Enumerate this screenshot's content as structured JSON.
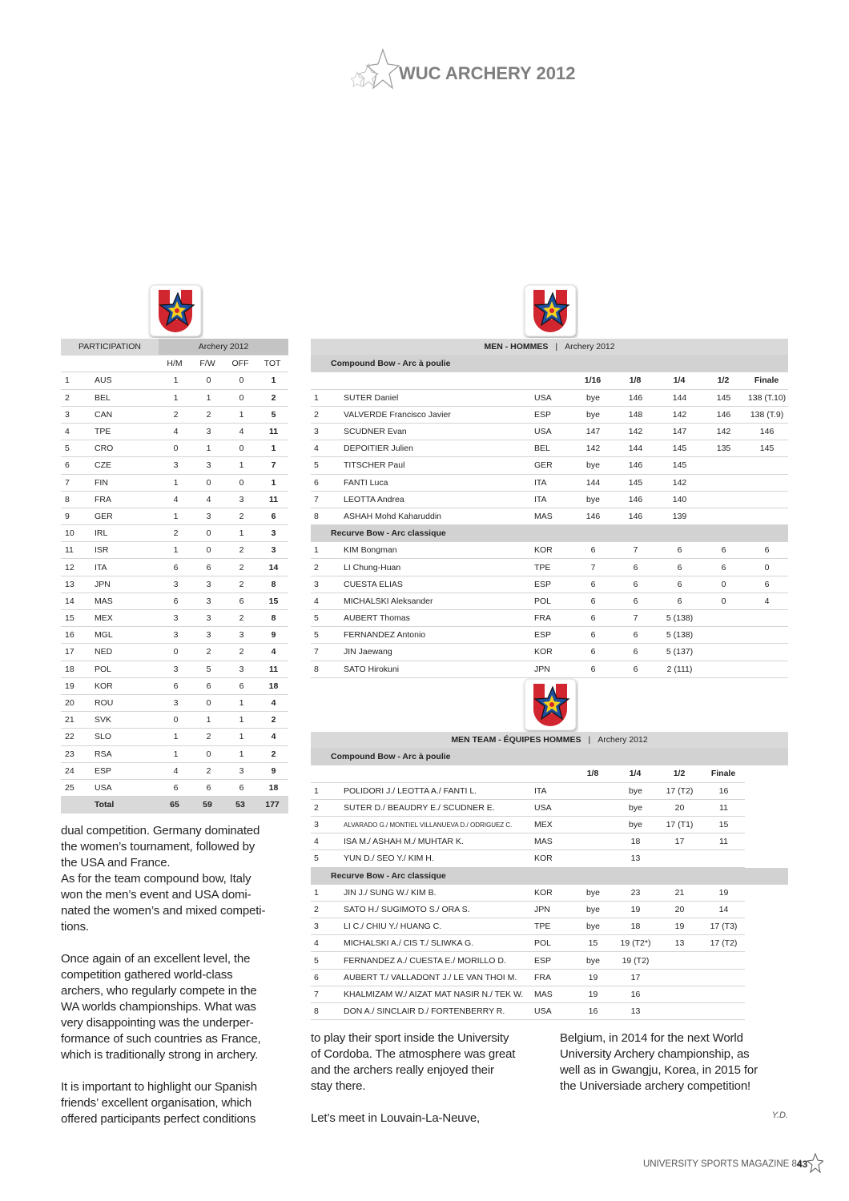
{
  "header": {
    "title": "WUC ARCHERY 2012"
  },
  "participation": {
    "title": "PARTICIPATION",
    "subtitle": "Archery 2012",
    "columns": [
      "H/M",
      "F/W",
      "OFF",
      "TOT"
    ],
    "rows": [
      [
        1,
        "AUS",
        1,
        0,
        0,
        1
      ],
      [
        2,
        "BEL",
        1,
        1,
        0,
        2
      ],
      [
        3,
        "CAN",
        2,
        2,
        1,
        5
      ],
      [
        4,
        "TPE",
        4,
        3,
        4,
        11
      ],
      [
        5,
        "CRO",
        0,
        1,
        0,
        1
      ],
      [
        6,
        "CZE",
        3,
        3,
        1,
        7
      ],
      [
        7,
        "FIN",
        1,
        0,
        0,
        1
      ],
      [
        8,
        "FRA",
        4,
        4,
        3,
        11
      ],
      [
        9,
        "GER",
        1,
        3,
        2,
        6
      ],
      [
        10,
        "IRL",
        2,
        0,
        1,
        3
      ],
      [
        11,
        "ISR",
        1,
        0,
        2,
        3
      ],
      [
        12,
        "ITA",
        6,
        6,
        2,
        14
      ],
      [
        13,
        "JPN",
        3,
        3,
        2,
        8
      ],
      [
        14,
        "MAS",
        6,
        3,
        6,
        15
      ],
      [
        15,
        "MEX",
        3,
        3,
        2,
        8
      ],
      [
        16,
        "MGL",
        3,
        3,
        3,
        9
      ],
      [
        17,
        "NED",
        0,
        2,
        2,
        4
      ],
      [
        18,
        "POL",
        3,
        5,
        3,
        11
      ],
      [
        19,
        "KOR",
        6,
        6,
        6,
        18
      ],
      [
        20,
        "ROU",
        3,
        0,
        1,
        4
      ],
      [
        21,
        "SVK",
        0,
        1,
        1,
        2
      ],
      [
        22,
        "SLO",
        1,
        2,
        1,
        4
      ],
      [
        23,
        "RSA",
        1,
        0,
        1,
        2
      ],
      [
        24,
        "ESP",
        4,
        2,
        3,
        9
      ],
      [
        25,
        "USA",
        6,
        6,
        6,
        18
      ]
    ],
    "total": [
      "Total",
      65,
      59,
      53,
      177
    ]
  },
  "men": {
    "title": "MEN - HOMMES",
    "separator": "|",
    "subtitle": "Archery 2012",
    "columns": [
      "1/16",
      "1/8",
      "1/4",
      "1/2",
      "Finale"
    ],
    "sections": [
      {
        "name": "Compound Bow - Arc à poulie",
        "rows": [
          [
            1,
            "SUTER Daniel",
            "USA",
            "bye",
            146,
            144,
            145,
            "138 (T.10)"
          ],
          [
            2,
            "VALVERDE Francisco Javier",
            "ESP",
            "bye",
            148,
            142,
            146,
            "138 (T.9)"
          ],
          [
            3,
            "SCUDNER Evan",
            "USA",
            147,
            142,
            147,
            142,
            146
          ],
          [
            4,
            "DEPOITIER Julien",
            "BEL",
            142,
            144,
            145,
            135,
            145
          ],
          [
            5,
            "TITSCHER Paul",
            "GER",
            "bye",
            146,
            145,
            null,
            null
          ],
          [
            6,
            "FANTI Luca",
            "ITA",
            144,
            145,
            142,
            null,
            null
          ],
          [
            7,
            "LEOTTA Andrea",
            "ITA",
            "bye",
            146,
            140,
            null,
            null
          ],
          [
            8,
            "ASHAH Mohd Kaharuddin",
            "MAS",
            146,
            146,
            139,
            null,
            null
          ]
        ]
      },
      {
        "name": "Recurve Bow - Arc classique",
        "rows": [
          [
            1,
            "KIM Bongman",
            "KOR",
            6,
            7,
            6,
            6,
            6
          ],
          [
            2,
            "LI Chung-Huan",
            "TPE",
            7,
            6,
            6,
            6,
            0
          ],
          [
            3,
            "CUESTA ELIAS",
            "ESP",
            6,
            6,
            6,
            0,
            6
          ],
          [
            4,
            "MICHALSKI Aleksander",
            "POL",
            6,
            6,
            6,
            0,
            4
          ],
          [
            5,
            "AUBERT Thomas",
            "FRA",
            6,
            7,
            "5 (138)",
            null,
            null
          ],
          [
            5,
            "FERNANDEZ Antonio",
            "ESP",
            6,
            6,
            "5 (138)",
            null,
            null
          ],
          [
            7,
            "JIN Jaewang",
            "KOR",
            6,
            6,
            "5 (137)",
            null,
            null
          ],
          [
            8,
            "SATO Hirokuni",
            "JPN",
            6,
            6,
            "2 (111)",
            null,
            null
          ]
        ]
      }
    ]
  },
  "team": {
    "title": "MEN TEAM - ÉQUIPES HOMMES",
    "separator": "|",
    "subtitle": "Archery 2012",
    "columns": [
      "1/8",
      "1/4",
      "1/2",
      "Finale"
    ],
    "sections": [
      {
        "name": "Compound Bow - Arc à poulie",
        "rows": [
          [
            1,
            "POLIDORI J./ LEOTTA A./ FANTI L.",
            "ITA",
            null,
            "bye",
            "17 (T2)",
            16
          ],
          [
            2,
            "SUTER D./ BEAUDRY E./ SCUDNER E.",
            "USA",
            null,
            "bye",
            20,
            11
          ],
          [
            3,
            "ALVARADO G./ MONTIEL VILLANUEVA D./ ODRIGUEZ C.",
            "MEX",
            null,
            "bye",
            "17 (T1)",
            15
          ],
          [
            4,
            "ISA M./ ASHAH M./ MUHTAR K.",
            "MAS",
            null,
            18,
            17,
            11
          ],
          [
            5,
            "YUN D./ SEO Y./ KIM H.",
            "KOR",
            null,
            13,
            null,
            null
          ]
        ]
      },
      {
        "name": "Recurve Bow - Arc classique",
        "rows": [
          [
            1,
            "JIN J./ SUNG W./ KIM B.",
            "KOR",
            "bye",
            23,
            21,
            19
          ],
          [
            2,
            "SATO H./ SUGIMOTO S./ ORA S.",
            "JPN",
            "bye",
            19,
            20,
            14
          ],
          [
            3,
            "LI C./ CHIU Y./ HUANG C.",
            "TPE",
            "bye",
            18,
            19,
            "17 (T3)"
          ],
          [
            4,
            "MICHALSKI A./ CIS T./ SLIWKA G.",
            "POL",
            15,
            "19 (T2*)",
            13,
            "17 (T2)"
          ],
          [
            5,
            "FERNANDEZ A./ CUESTA E./ MORILLO D.",
            "ESP",
            "bye",
            "19 (T2)",
            null,
            null
          ],
          [
            6,
            "AUBERT T./ VALLADONT J./ LE VAN THOI M.",
            "FRA",
            19,
            17,
            null,
            null
          ],
          [
            7,
            "KHALMIZAM W./ AIZAT MAT NASIR N./ TEK W.",
            "MAS",
            19,
            16,
            null,
            null
          ],
          [
            8,
            "DON A./ SINCLAIR D./ FORTENBERRY R.",
            "USA",
            16,
            13,
            null,
            null
          ]
        ]
      }
    ]
  },
  "article": {
    "columns": [
      [
        [
          "dual competition. Germany dominated",
          "the women’s tournament, followed by",
          "the USA and France.",
          "As for the team compound bow, Italy",
          "won the men’s event and USA domi-",
          "nated the women’s and mixed competi-",
          "tions."
        ],
        [
          "Once again of an excellent level, the",
          "competition gathered world-class",
          "archers, who regularly compete in the",
          "WA worlds championships. What was",
          "very disappointing was the underper-",
          "formance of such countries as France,",
          "which is traditionally strong in archery."
        ],
        [
          "It is important to highlight our Spanish",
          "friends’ excellent organisation, which",
          "offered participants perfect conditions"
        ]
      ],
      [
        [
          "to play their sport inside the University",
          "of Cordoba. The atmosphere was great",
          "and the archers really enjoyed their",
          "stay there."
        ],
        [
          "Let’s meet in Louvain-La-Neuve,"
        ]
      ],
      [
        [
          "Belgium, in 2014 for the next World",
          "University Archery championship, as",
          "well as in Gwangju, Korea, in 2015 for",
          "the Universiade archery competition!"
        ]
      ]
    ],
    "signature": "Y.D."
  },
  "footer": {
    "magazine": "UNIVERSITY SPORTS MAGAZINE 84",
    "page": "43"
  }
}
